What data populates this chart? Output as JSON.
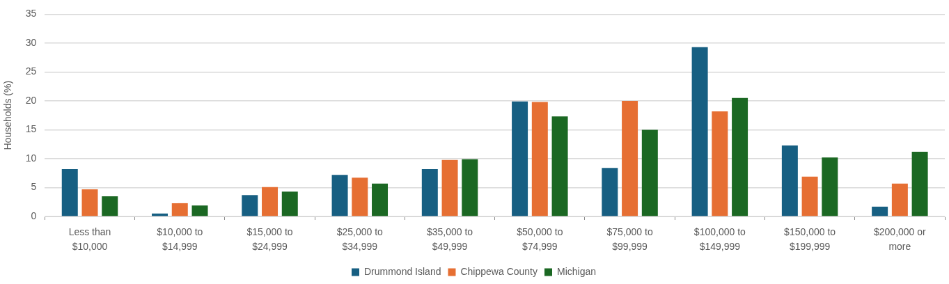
{
  "chart_data": {
    "type": "bar",
    "ylabel": "Households (%)",
    "categories": [
      "Less than $10,000",
      "$10,000 to $14,999",
      "$15,000 to $24,999",
      "$25,000 to $34,999",
      "$35,000 to $49,999",
      "$50,000 to $74,999",
      "$75,000 to $99,999",
      "$100,000 to $149,999",
      "$150,000 to $199,999",
      "$200,000 or more"
    ],
    "series": [
      {
        "name": "Drummond Island",
        "color": "#175f82",
        "values": [
          8.2,
          0.5,
          3.7,
          7.2,
          8.2,
          19.9,
          8.4,
          29.3,
          12.3,
          1.7
        ]
      },
      {
        "name": "Chippewa County",
        "color": "#e66f33",
        "values": [
          4.7,
          2.3,
          5.1,
          6.7,
          9.8,
          19.8,
          20.0,
          18.2,
          6.9,
          5.7
        ]
      },
      {
        "name": "Michigan",
        "color": "#1b6823",
        "values": [
          3.5,
          1.9,
          4.3,
          5.7,
          9.9,
          17.3,
          15.0,
          20.5,
          10.2,
          11.2
        ]
      }
    ],
    "ylim": [
      0,
      35
    ],
    "yticks": [
      0,
      5,
      10,
      15,
      20,
      25,
      30,
      35
    ],
    "grid": "y",
    "legend": "bottom"
  }
}
